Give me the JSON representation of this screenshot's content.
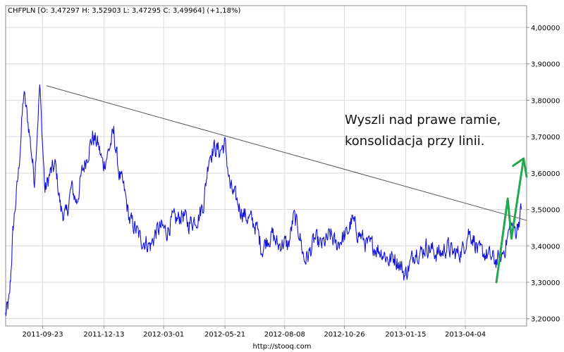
{
  "header": {
    "quote_line": "CHFPLN [O: 3,47297  H: 3,52903  L: 3,47295  C: 3,49964] (+1,18%)"
  },
  "footer": {
    "source": "http://stooq.com"
  },
  "annotation": {
    "line1": "Wyszli nad prawe ramie,",
    "line2": "konsolidacja przy linii."
  },
  "colors": {
    "price": "#1414d8",
    "trendline": "#555555",
    "arrow": "#22a850",
    "grid": "#d9d9d9",
    "frame": "#8c8c8c"
  },
  "chart_data": {
    "type": "line",
    "title": "",
    "series": [
      {
        "x": [
          "2011-08-05",
          "2011-08-10",
          "2011-08-15",
          "2011-08-22",
          "2011-08-29",
          "2011-09-05",
          "2011-09-12",
          "2011-09-19",
          "2011-09-26",
          "2011-10-03",
          "2011-10-10",
          "2011-10-17",
          "2011-10-24",
          "2011-10-31",
          "2011-11-07",
          "2011-11-14",
          "2011-11-21",
          "2011-11-28",
          "2011-12-05",
          "2011-12-12",
          "2011-12-19",
          "2011-12-26",
          "2012-01-02",
          "2012-01-09",
          "2012-01-16",
          "2012-01-23",
          "2012-01-30",
          "2012-02-06",
          "2012-02-13",
          "2012-02-20",
          "2012-02-27",
          "2012-03-05",
          "2012-03-12",
          "2012-03-19",
          "2012-03-26",
          "2012-04-02",
          "2012-04-09",
          "2012-04-16",
          "2012-04-23",
          "2012-04-30",
          "2012-05-07",
          "2012-05-14",
          "2012-05-21",
          "2012-05-28",
          "2012-06-04",
          "2012-06-11",
          "2012-06-18",
          "2012-06-25",
          "2012-07-02",
          "2012-07-09",
          "2012-07-16",
          "2012-07-23",
          "2012-07-30",
          "2012-08-06",
          "2012-08-13",
          "2012-08-20",
          "2012-08-27",
          "2012-09-03",
          "2012-09-10",
          "2012-09-17",
          "2012-09-24",
          "2012-10-01",
          "2012-10-08",
          "2012-10-15",
          "2012-10-22",
          "2012-10-29",
          "2012-11-05",
          "2012-11-12",
          "2012-11-19",
          "2012-11-26",
          "2012-12-03",
          "2012-12-10",
          "2012-12-17",
          "2012-12-24",
          "2012-12-31",
          "2013-01-07",
          "2013-01-14",
          "2013-01-21",
          "2013-01-28",
          "2013-02-04",
          "2013-02-11",
          "2013-02-18",
          "2013-02-25",
          "2013-03-04",
          "2013-03-11",
          "2013-03-18",
          "2013-03-25",
          "2013-04-01",
          "2013-04-08",
          "2013-04-15",
          "2013-04-22",
          "2013-04-29",
          "2013-05-06",
          "2013-05-13",
          "2013-05-20",
          "2013-05-27",
          "2013-06-03",
          "2013-06-10",
          "2013-06-17"
        ],
        "close": [
          3.21,
          3.25,
          3.45,
          3.6,
          3.82,
          3.72,
          3.58,
          3.84,
          3.55,
          3.6,
          3.62,
          3.5,
          3.48,
          3.56,
          3.52,
          3.6,
          3.65,
          3.7,
          3.68,
          3.62,
          3.66,
          3.71,
          3.6,
          3.55,
          3.47,
          3.45,
          3.42,
          3.41,
          3.4,
          3.44,
          3.45,
          3.44,
          3.47,
          3.47,
          3.49,
          3.46,
          3.47,
          3.48,
          3.52,
          3.65,
          3.67,
          3.66,
          3.68,
          3.56,
          3.53,
          3.5,
          3.48,
          3.47,
          3.45,
          3.39,
          3.42,
          3.43,
          3.4,
          3.41,
          3.4,
          3.48,
          3.44,
          3.36,
          3.38,
          3.42,
          3.4,
          3.41,
          3.43,
          3.4,
          3.42,
          3.43,
          3.47,
          3.44,
          3.42,
          3.4,
          3.4,
          3.39,
          3.38,
          3.36,
          3.37,
          3.35,
          3.32,
          3.35,
          3.39,
          3.38,
          3.4,
          3.39,
          3.38,
          3.38,
          3.4,
          3.38,
          3.38,
          3.39,
          3.44,
          3.42,
          3.38,
          3.38,
          3.37,
          3.36,
          3.36,
          3.4,
          3.46,
          3.44,
          3.5
        ]
      }
    ],
    "x_ticks": [
      "2011-09-23",
      "2011-12-13",
      "2012-03-01",
      "2012-05-21",
      "2012-08-08",
      "2012-10-26",
      "2013-01-15",
      "2013-04-04"
    ],
    "y_ticks": [
      "3,20000",
      "3,30000",
      "3,40000",
      "3,50000",
      "3,60000",
      "3,70000",
      "3,80000",
      "3,90000",
      "4,00000"
    ],
    "ylim": [
      3.18,
      4.06
    ],
    "xlim": [
      "2011-08-05",
      "2013-06-24"
    ],
    "trendline": {
      "start": [
        "2011-09-28",
        3.84
      ],
      "end": [
        "2013-06-24",
        3.47
      ]
    },
    "arrow": {
      "points": [
        [
          "2013-05-15",
          3.3
        ],
        [
          "2013-05-30",
          3.53
        ],
        [
          "2013-06-04",
          3.42
        ],
        [
          "2013-06-20",
          3.64
        ]
      ],
      "head_points": [
        [
          "2013-06-06",
          3.62
        ],
        [
          "2013-06-20",
          3.64
        ],
        [
          "2013-06-24",
          3.59
        ]
      ]
    },
    "grid": true
  }
}
